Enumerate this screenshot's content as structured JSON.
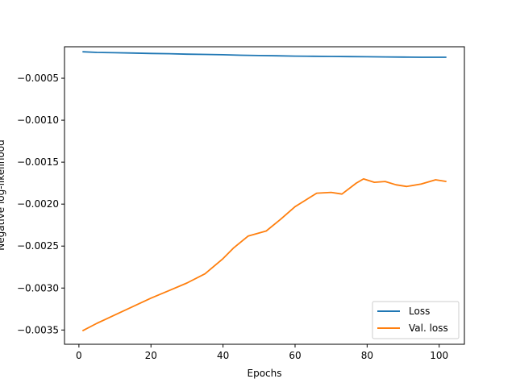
{
  "chart_data": {
    "type": "line",
    "title": "",
    "xlabel": "Epochs",
    "ylabel": "Negative log-likelihood",
    "xlim": [
      -4,
      107
    ],
    "ylim": [
      -0.00367,
      -0.000125
    ],
    "xticks": [
      0,
      20,
      40,
      60,
      80,
      100
    ],
    "xtick_labels": [
      "0",
      "20",
      "40",
      "60",
      "80",
      "100"
    ],
    "yticks": [
      -0.0035,
      -0.003,
      -0.0025,
      -0.002,
      -0.0015,
      -0.001,
      -0.0005
    ],
    "ytick_labels": [
      "−0.0035",
      "−0.0030",
      "−0.0025",
      "−0.0020",
      "−0.0015",
      "−0.0010",
      "−0.0005"
    ],
    "grid": false,
    "legend_position": "lower-right",
    "colors": {
      "Loss": "#1f77b4",
      "Val. loss": "#ff7f0e"
    },
    "series": [
      {
        "name": "Loss",
        "x": [
          1,
          5,
          10,
          15,
          20,
          25,
          30,
          35,
          40,
          45,
          50,
          55,
          60,
          65,
          70,
          75,
          80,
          85,
          90,
          95,
          102
        ],
        "y": [
          -0.000185,
          -0.000192,
          -0.000196,
          -0.0002,
          -0.000205,
          -0.000208,
          -0.000213,
          -0.000216,
          -0.00022,
          -0.000226,
          -0.00023,
          -0.000233,
          -0.000236,
          -0.000238,
          -0.00024,
          -0.000242,
          -0.000244,
          -0.000246,
          -0.000248,
          -0.00025,
          -0.00025
        ]
      },
      {
        "name": "Val. loss",
        "x": [
          1,
          5,
          10,
          15,
          20,
          25,
          30,
          35,
          40,
          43,
          47,
          52,
          56,
          60,
          63,
          66,
          70,
          73,
          77,
          79,
          82,
          85,
          88,
          91,
          95,
          99,
          102
        ],
        "y": [
          -0.00351,
          -0.00342,
          -0.00332,
          -0.00322,
          -0.00312,
          -0.00303,
          -0.00294,
          -0.00283,
          -0.00265,
          -0.00252,
          -0.00238,
          -0.00232,
          -0.00218,
          -0.00203,
          -0.00195,
          -0.00187,
          -0.00186,
          -0.00188,
          -0.00175,
          -0.0017,
          -0.00174,
          -0.00173,
          -0.00177,
          -0.00179,
          -0.00176,
          -0.00171,
          -0.00173
        ]
      }
    ]
  }
}
